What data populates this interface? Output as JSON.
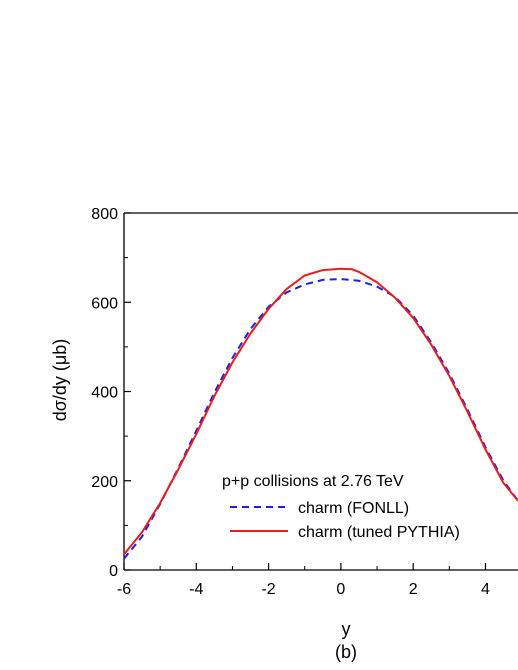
{
  "chart_data": {
    "type": "line",
    "title": "",
    "xlabel": "y",
    "ylabel": "dσ/dy (μb)",
    "caption": "(b)",
    "xlim": [
      -6,
      4.9
    ],
    "ylim": [
      0,
      800
    ],
    "x_ticks": [
      -6,
      -4,
      -2,
      0,
      2,
      4
    ],
    "x_tick_labels": [
      "-6",
      "-4",
      "-2",
      "0",
      "2",
      "4"
    ],
    "y_ticks": [
      0,
      200,
      400,
      600,
      800
    ],
    "y_tick_labels": [
      "0",
      "200",
      "400",
      "600",
      "800"
    ],
    "grid": false,
    "legend": {
      "placement": "lower-center",
      "header": "p+p collisions at 2.76 TeV"
    },
    "series": [
      {
        "name": "charm (FONLL)",
        "style": "dashed",
        "color": "#1f1fe6",
        "x": [
          -6,
          -5.5,
          -5,
          -4.5,
          -4,
          -3.5,
          -3,
          -2.5,
          -2,
          -1.5,
          -1,
          -0.5,
          0,
          0.5,
          1,
          1.5,
          2,
          2.5,
          3,
          3.5,
          4,
          4.5,
          4.9
        ],
        "y": [
          25,
          75,
          148,
          228,
          312,
          398,
          475,
          540,
          590,
          622,
          640,
          650,
          652,
          648,
          635,
          612,
          570,
          510,
          440,
          360,
          275,
          200,
          155
        ]
      },
      {
        "name": "charm (tuned PYTHIA)",
        "style": "solid",
        "color": "#e61e1e",
        "x": [
          -6,
          -5.5,
          -5,
          -4.5,
          -4,
          -3.5,
          -3,
          -2.5,
          -2,
          -1.5,
          -1,
          -0.5,
          0,
          0.3,
          0.5,
          1,
          1.5,
          2,
          2.5,
          3,
          3.5,
          4,
          4.5,
          4.9
        ],
        "y": [
          35,
          85,
          150,
          225,
          305,
          390,
          465,
          530,
          585,
          630,
          660,
          672,
          675,
          674,
          668,
          645,
          610,
          565,
          505,
          435,
          355,
          270,
          195,
          155
        ]
      }
    ]
  }
}
